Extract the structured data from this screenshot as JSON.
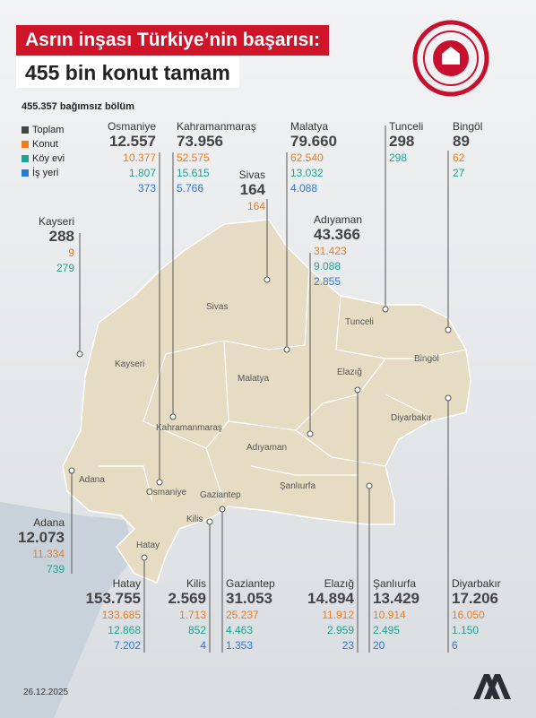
{
  "title_line1": "Asrın inşası Türkiye’nin başarısı:",
  "title_line2": "455 bin konut tamam",
  "subtitle": "455.357 bağımsız bölüm",
  "legend": [
    {
      "label": "Toplam",
      "color": "#444444"
    },
    {
      "label": "Konut",
      "color": "#f07c1a"
    },
    {
      "label": "Köy evi",
      "color": "#1ea38e"
    },
    {
      "label": "İş yeri",
      "color": "#2777d6"
    }
  ],
  "cities": {
    "osmaniye": {
      "name": "Osmaniye",
      "total": "12.557",
      "konut": "10.377",
      "koy": "1.807",
      "is": "373"
    },
    "kahramanmaras": {
      "name": "Kahramanmaraş",
      "total": "73.956",
      "konut": "52.575",
      "koy": "15.615",
      "is": "5.766"
    },
    "malatya": {
      "name": "Malatya",
      "total": "79.660",
      "konut": "62.540",
      "koy": "13.032",
      "is": "4.088"
    },
    "tunceli": {
      "name": "Tunceli",
      "total": "298",
      "koy": "298"
    },
    "bingol": {
      "name": "Bingöl",
      "total": "89",
      "konut": "62",
      "koy": "27"
    },
    "sivas": {
      "name": "Sivas",
      "total": "164",
      "konut": "164"
    },
    "adiyaman": {
      "name": "Adıyaman",
      "total": "43.366",
      "konut": "31.423",
      "koy": "9.088",
      "is": "2.855"
    },
    "kayseri": {
      "name": "Kayseri",
      "total": "288",
      "konut": "9",
      "koy": "279"
    },
    "adana": {
      "name": "Adana",
      "total": "12.073",
      "konut": "11.334",
      "koy": "739"
    },
    "hatay": {
      "name": "Hatay",
      "total": "153.755",
      "konut": "133.685",
      "koy": "12.868",
      "is": "7.202"
    },
    "kilis": {
      "name": "Kilis",
      "total": "2.569",
      "konut": "1.713",
      "koy": "852",
      "is": "4"
    },
    "gaziantep": {
      "name": "Gaziantep",
      "total": "31.053",
      "konut": "25.237",
      "koy": "4.463",
      "is": "1.353"
    },
    "elazig": {
      "name": "Elazığ",
      "total": "14.894",
      "konut": "11.912",
      "koy": "2.959",
      "is": "23"
    },
    "sanliurfa": {
      "name": "Şanlıurfa",
      "total": "13.429",
      "konut": "10.914",
      "koy": "2.495",
      "is": "20"
    },
    "diyarbakir": {
      "name": "Diyarbakır",
      "total": "17.206",
      "konut": "16.050",
      "koy": "1.150",
      "is": "6"
    }
  },
  "map_labels": {
    "sivas": "Sivas",
    "kayseri": "Kayseri",
    "malatya": "Malatya",
    "tunceli": "Tunceli",
    "elazig": "Elazığ",
    "bingol": "Bingöl",
    "diyarbakir": "Diyarbakır",
    "kahramanmaras": "Kahramanmaraş",
    "adiyaman": "Adıyaman",
    "adana": "Adana",
    "osmaniye": "Osmaniye",
    "gaziantep": "Gaziantep",
    "sanliurfa": "Şanlıurfa",
    "kilis": "Kilis",
    "hatay": "Hatay"
  },
  "date": "26.12.2025",
  "agency": "AA",
  "colors": {
    "accent": "#d0142a",
    "land": "#e6dcc4",
    "konut": "#f07c1a",
    "koy": "#1ea38e",
    "is": "#2777d6"
  }
}
